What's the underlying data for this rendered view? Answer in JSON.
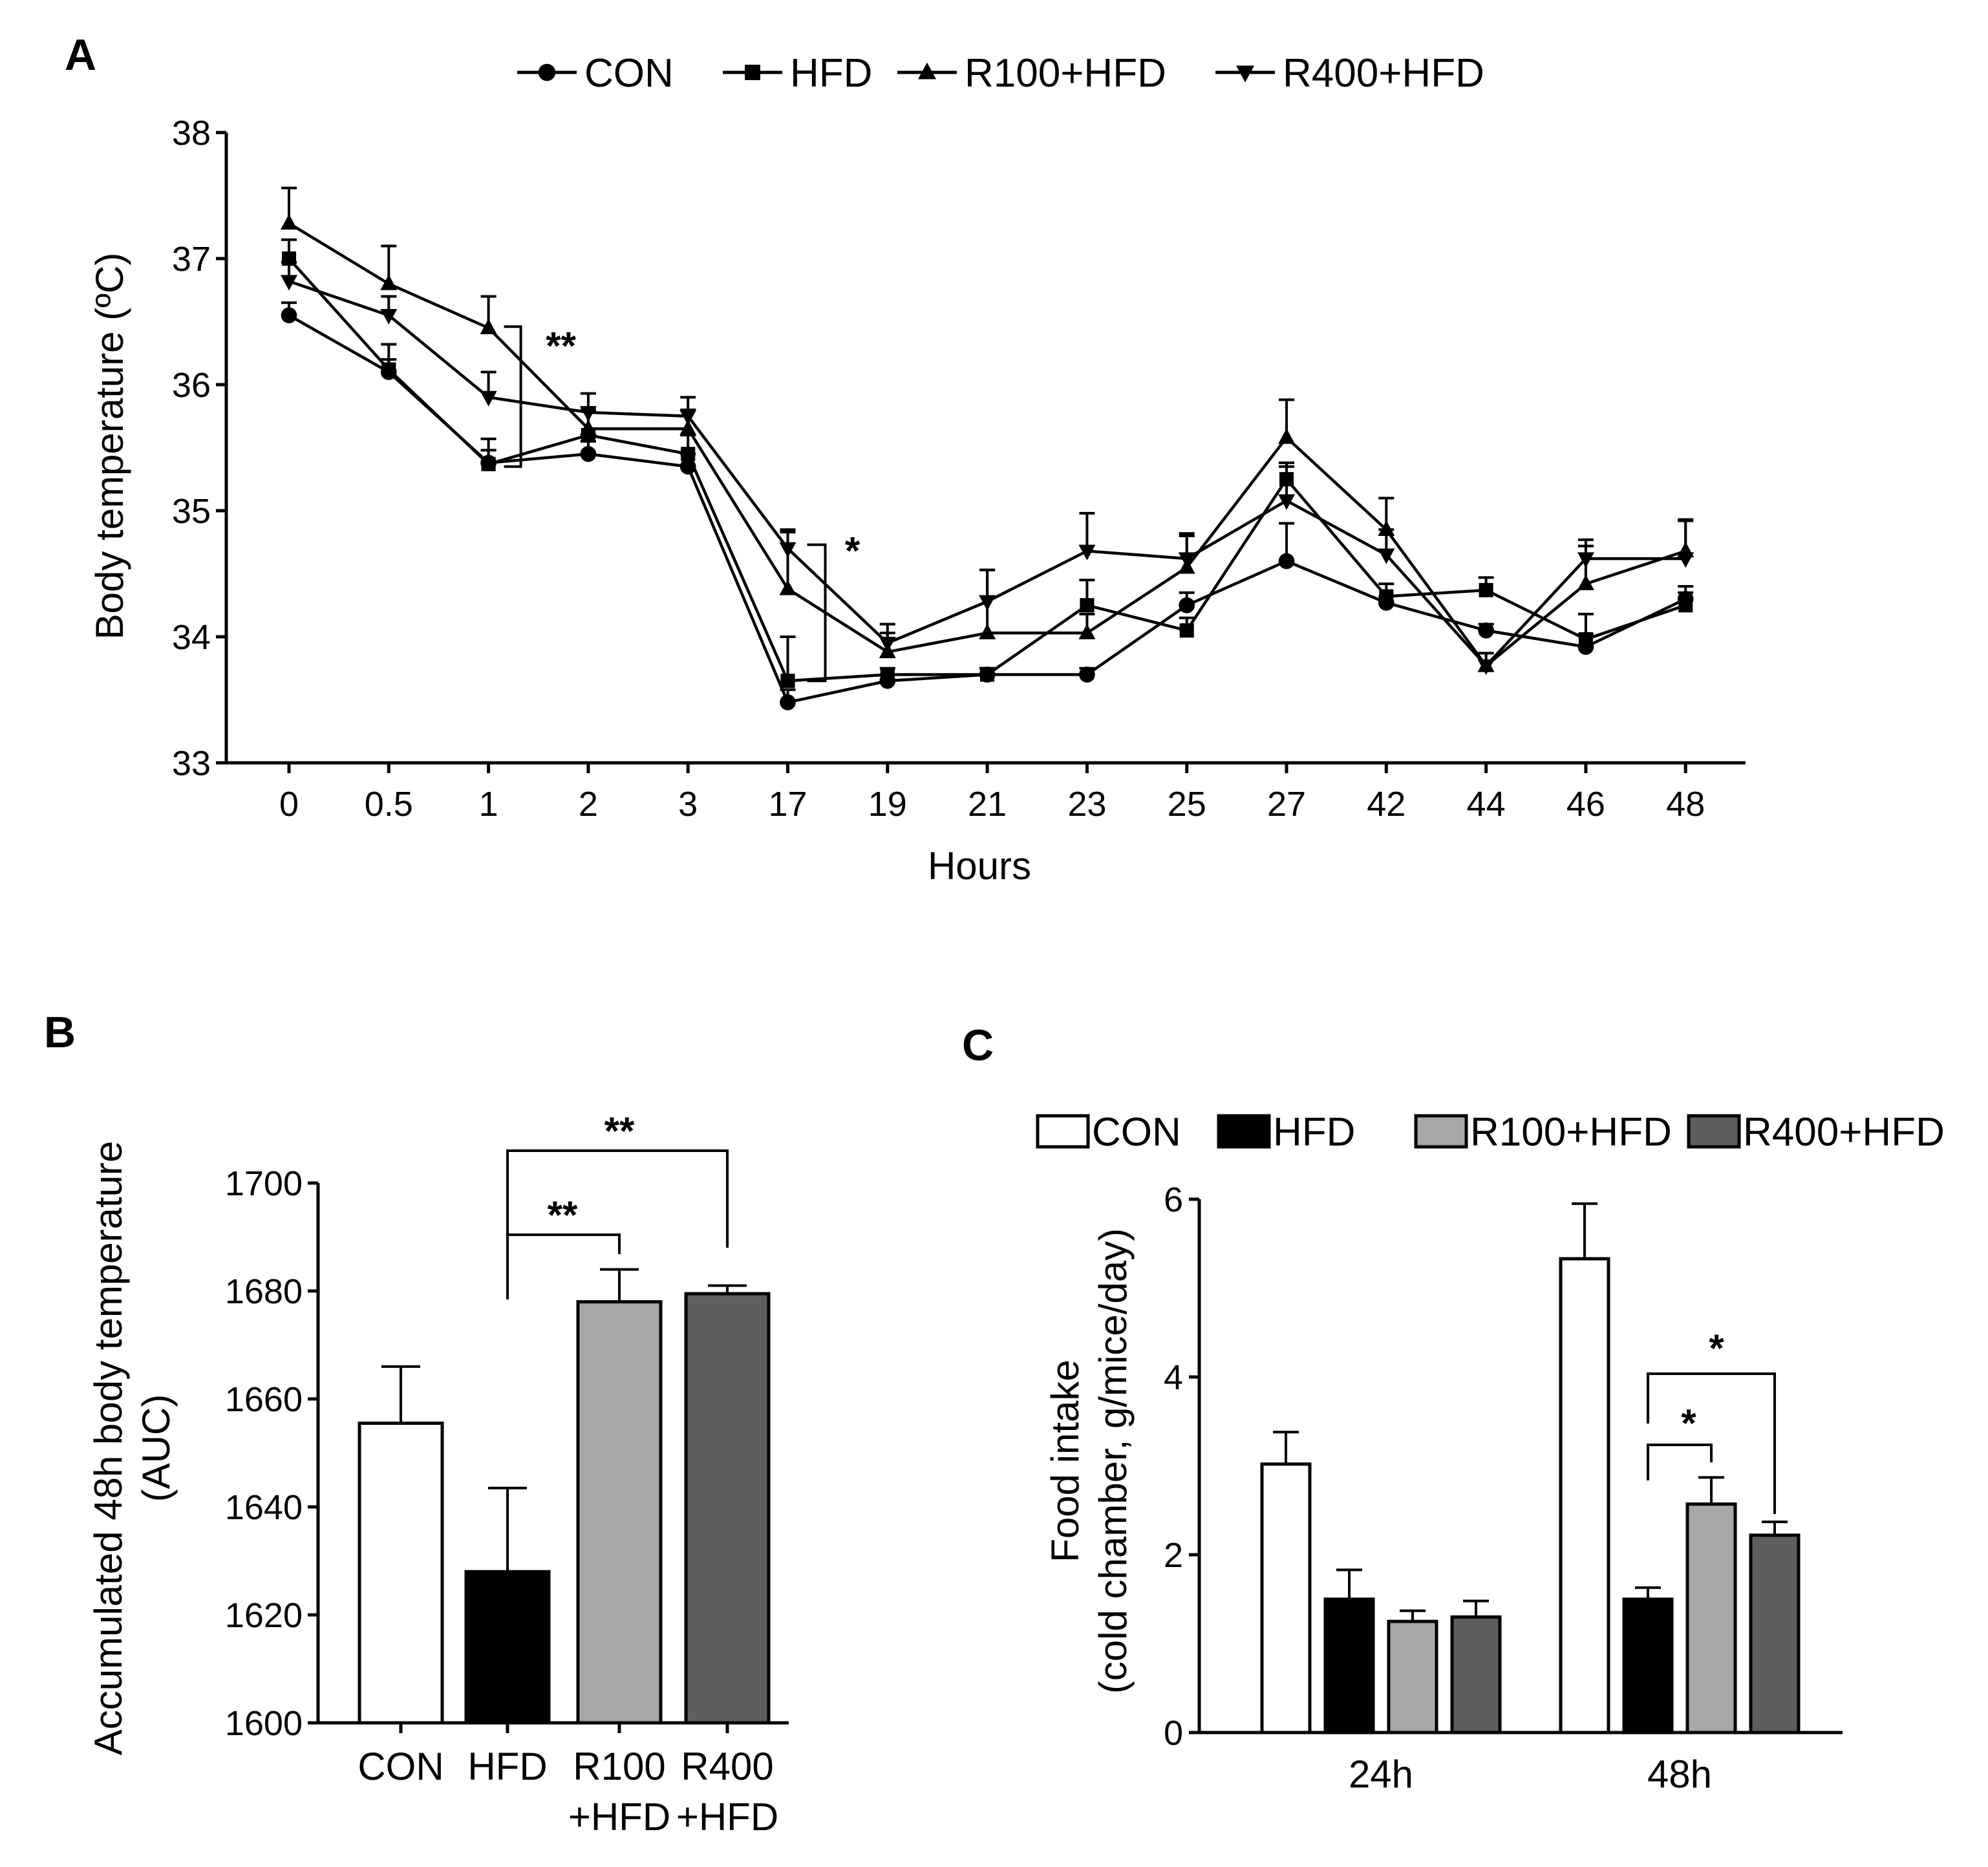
{
  "colors": {
    "CON": "#ffffff",
    "HFD": "#000000",
    "R100+HFD": "#a7a7aa",
    "R400+HFD": "#5e5e5e"
  },
  "chart_data": [
    {
      "panel": "A",
      "type": "line",
      "xlabel": "Hours",
      "ylabel": "Body temperature (ºC)",
      "ylim": [
        33,
        38
      ],
      "yticks": [
        33,
        34,
        35,
        36,
        37,
        38
      ],
      "categories": [
        "0",
        "0.5",
        "1",
        "2",
        "3",
        "17",
        "19",
        "21",
        "23",
        "25",
        "27",
        "42",
        "44",
        "46",
        "48"
      ],
      "legend": [
        "CON",
        "HFD",
        "R100+HFD",
        "R400+HFD"
      ],
      "series": [
        {
          "name": "CON",
          "marker": "circle",
          "values": [
            36.55,
            36.1,
            35.38,
            35.45,
            35.35,
            33.48,
            33.65,
            33.7,
            33.7,
            34.25,
            34.6,
            34.27,
            34.05,
            33.92,
            34.3
          ],
          "errors": [
            0.1,
            0.1,
            0.1,
            0.1,
            0.1,
            0.1,
            0.05,
            0.05,
            0.05,
            0.1,
            0.3,
            0.05,
            0.05,
            0.1,
            0.1
          ]
        },
        {
          "name": "HFD",
          "marker": "square",
          "values": [
            37.0,
            36.12,
            35.37,
            35.6,
            35.45,
            33.65,
            33.7,
            33.7,
            34.25,
            34.05,
            35.25,
            34.32,
            34.37,
            33.98,
            34.25
          ],
          "errors": [
            0.15,
            0.2,
            0.2,
            0.2,
            0.15,
            0.35,
            0.05,
            0.05,
            0.2,
            0.1,
            0.1,
            0.1,
            0.1,
            0.2,
            0.1
          ]
        },
        {
          "name": "R100+HFD",
          "marker": "triangle-up",
          "values": [
            37.28,
            36.8,
            36.45,
            35.65,
            35.65,
            34.38,
            33.88,
            34.03,
            34.03,
            34.55,
            35.58,
            34.85,
            33.77,
            34.42,
            34.68
          ],
          "errors": [
            0.28,
            0.3,
            0.25,
            0.15,
            0.15,
            0.45,
            0.15,
            0.5,
            0.15,
            0.25,
            0.3,
            0.25,
            0.1,
            0.3,
            0.25
          ]
        },
        {
          "name": "R400+HFD",
          "marker": "triangle-down",
          "values": [
            36.82,
            36.55,
            35.9,
            35.78,
            35.75,
            34.7,
            33.95,
            34.28,
            34.68,
            34.62,
            35.08,
            34.65,
            33.77,
            34.62,
            34.62
          ],
          "errors": [
            0.15,
            0.15,
            0.2,
            0.15,
            0.15,
            0.15,
            0.15,
            0.25,
            0.3,
            0.2,
            0.3,
            0.2,
            0.1,
            0.15,
            0.3
          ]
        }
      ],
      "annotations": [
        {
          "text": "**",
          "category": "1"
        },
        {
          "text": "*",
          "category": "17"
        }
      ]
    },
    {
      "panel": "B",
      "type": "bar",
      "ylabel": "Accumulated 48h body temperature",
      "ylabel_unit": "(AUC)",
      "ylim": [
        1600,
        1700
      ],
      "yticks": [
        1600,
        1620,
        1640,
        1660,
        1680,
        1700
      ],
      "categories": [
        "CON",
        "HFD",
        "R100+HFD",
        "R400+HFD"
      ],
      "category_labels": [
        [
          "CON"
        ],
        [
          "HFD"
        ],
        [
          "R100",
          "+HFD"
        ],
        [
          "R400",
          "+HFD"
        ]
      ],
      "values": [
        1655.5,
        1628,
        1678,
        1679.5
      ],
      "errors": [
        10.5,
        15.5,
        6,
        1.5
      ],
      "annotations": [
        {
          "text": "**",
          "from": "HFD",
          "to": "R100+HFD"
        },
        {
          "text": "**",
          "from": "HFD",
          "to": "R400+HFD"
        }
      ]
    },
    {
      "panel": "C",
      "type": "bar",
      "ylabel": "Food intake",
      "ylabel_unit": "(cold chamber, g/mice/day)",
      "ylim": [
        0,
        6
      ],
      "yticks": [
        0,
        2,
        4,
        6
      ],
      "categories": [
        "24h",
        "48h"
      ],
      "legend": [
        "CON",
        "HFD",
        "R100+HFD",
        "R400+HFD"
      ],
      "series": [
        {
          "name": "CON",
          "values": [
            3.02,
            5.33
          ],
          "errors": [
            0.36,
            0.62
          ]
        },
        {
          "name": "HFD",
          "values": [
            1.5,
            1.5
          ],
          "errors": [
            0.33,
            0.13
          ]
        },
        {
          "name": "R100+HFD",
          "values": [
            1.25,
            2.57
          ],
          "errors": [
            0.12,
            0.3
          ]
        },
        {
          "name": "R400+HFD",
          "values": [
            1.3,
            2.22
          ],
          "errors": [
            0.18,
            0.15
          ]
        }
      ],
      "annotations": [
        {
          "text": "*",
          "group": "48h",
          "from": "HFD",
          "to": "R100+HFD"
        },
        {
          "text": "*",
          "group": "48h",
          "from": "HFD",
          "to": "R400+HFD"
        }
      ]
    }
  ]
}
